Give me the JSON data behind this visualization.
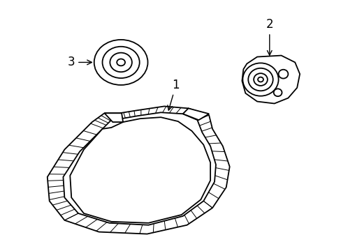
{
  "background_color": "#ffffff",
  "line_color": "#000000",
  "label_1": "1",
  "label_2": "2",
  "label_3": "3",
  "font_size": 12
}
